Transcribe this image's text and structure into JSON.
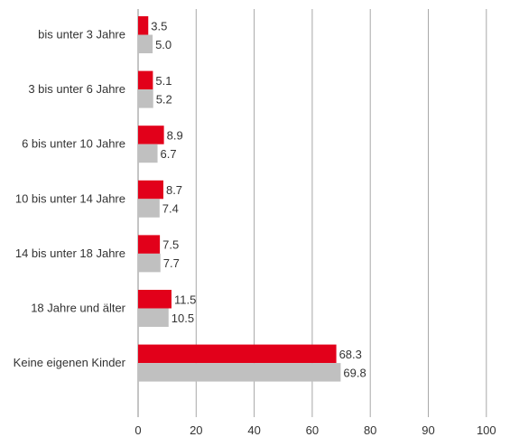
{
  "chart_data": {
    "type": "bar",
    "orientation": "horizontal",
    "categories": [
      "bis unter 3 Jahre",
      "3 bis unter 6 Jahre",
      "6 bis unter 10 Jahre",
      "10 bis unter 14 Jahre",
      "14 bis unter 18 Jahre",
      "18 Jahre und älter",
      "Keine eigenen Kinder"
    ],
    "series": [
      {
        "color": "#e2001a",
        "values": [
          3.5,
          5.1,
          8.9,
          8.7,
          7.5,
          11.5,
          68.3
        ]
      },
      {
        "color": "#c0c0c0",
        "values": [
          5.0,
          5.2,
          6.7,
          7.4,
          7.7,
          10.5,
          69.8
        ]
      }
    ],
    "value_labels": [
      [
        "3.5",
        "5.1",
        "8.9",
        "8.7",
        "7.5",
        "11.5",
        "68.3"
      ],
      [
        "5.0",
        "5.2",
        "6.7",
        "7.4",
        "7.7",
        "10.5",
        "69.8"
      ]
    ],
    "x_ticks": [
      0,
      20,
      40,
      60,
      80,
      90,
      100
    ],
    "x_tick_labels": [
      "0",
      "20",
      "40",
      "60",
      "80",
      "90",
      "100"
    ],
    "grid": true,
    "legend": "none"
  }
}
